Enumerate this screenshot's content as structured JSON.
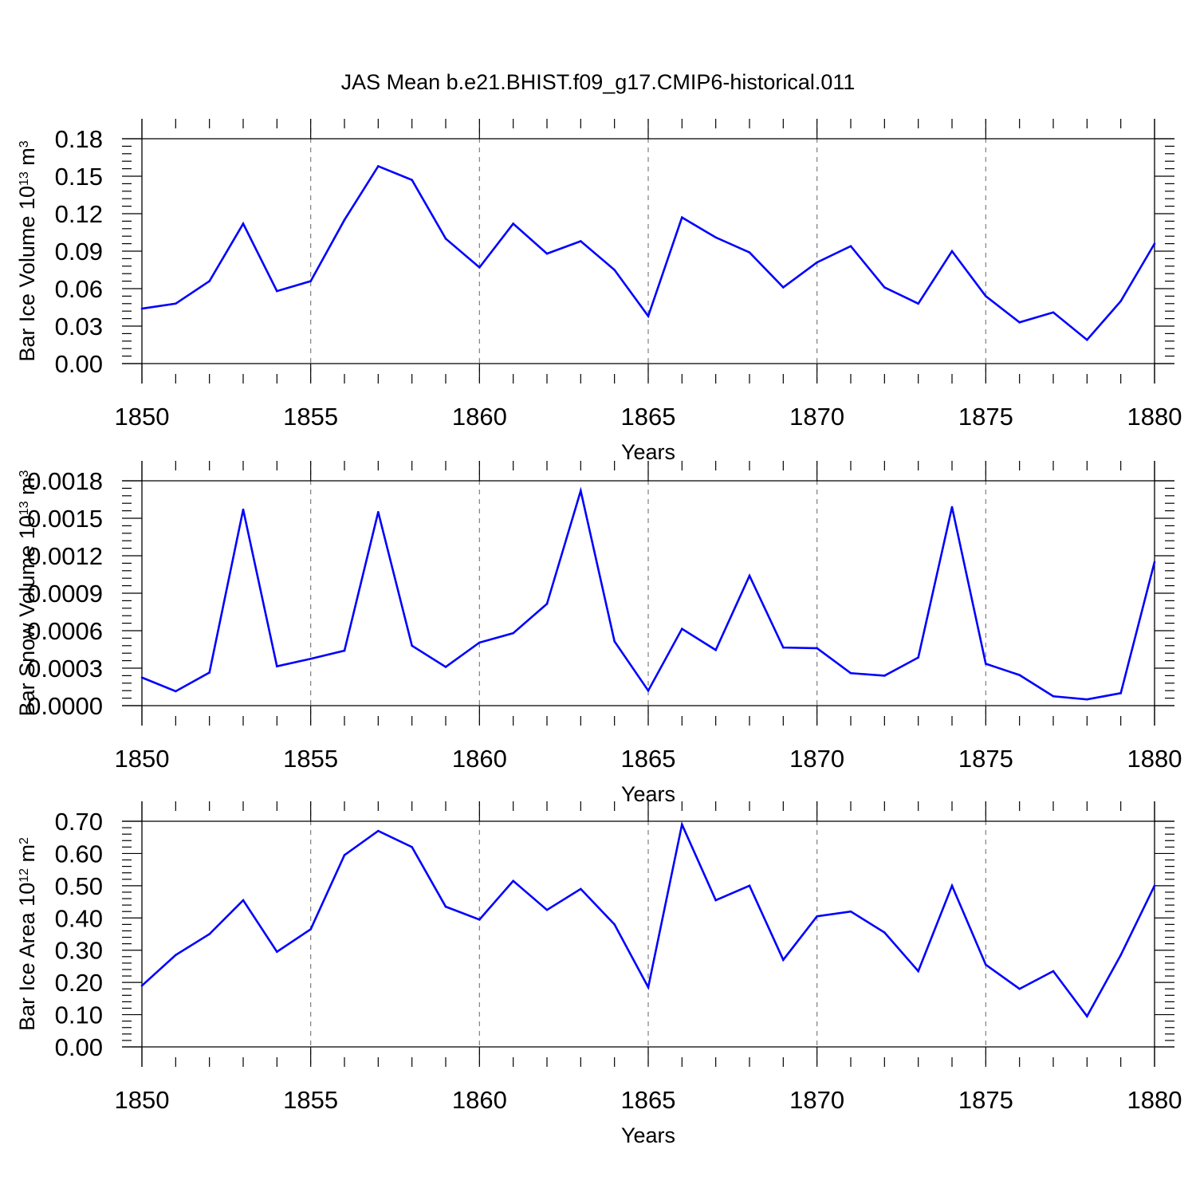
{
  "title": "JAS Mean b.e21.BHIST.f09_g17.CMIP6-historical.011",
  "colors": {
    "line": "#0000ff",
    "axis": "#000000",
    "grid": "#7f7f7f"
  },
  "chart_data": [
    {
      "type": "line",
      "title": "JAS Mean b.e21.BHIST.f09_g17.CMIP6-historical.011",
      "xlabel": "Years",
      "ylabel": {
        "text": "Bar Ice Volume 10",
        "exp": "13",
        "unit": " m",
        "unit_exp": "3"
      },
      "xlim": [
        1850,
        1880
      ],
      "ylim": [
        0,
        0.18
      ],
      "yticks": [
        0.0,
        0.03,
        0.06,
        0.09,
        0.12,
        0.15,
        0.18
      ],
      "ytick_labels": [
        "0.00",
        "0.03",
        "0.06",
        "0.09",
        "0.12",
        "0.15",
        "0.18"
      ],
      "xticks": [
        1850,
        1855,
        1860,
        1865,
        1870,
        1875,
        1880
      ],
      "xtick_labels": [
        "1850",
        "1855",
        "1860",
        "1865",
        "1870",
        "1875",
        "1880"
      ],
      "grid": "vertical dashed at major x ticks",
      "x": [
        1850,
        1851,
        1852,
        1853,
        1854,
        1855,
        1856,
        1857,
        1858,
        1859,
        1860,
        1861,
        1862,
        1863,
        1864,
        1865,
        1866,
        1867,
        1868,
        1869,
        1870,
        1871,
        1872,
        1873,
        1874,
        1875,
        1876,
        1877,
        1878,
        1879,
        1880
      ],
      "series": [
        {
          "name": "Bar Ice Volume",
          "values": [
            0.044,
            0.048,
            0.066,
            0.112,
            0.058,
            0.066,
            0.115,
            0.158,
            0.147,
            0.1,
            0.077,
            0.112,
            0.088,
            0.098,
            0.075,
            0.038,
            0.117,
            0.101,
            0.089,
            0.061,
            0.081,
            0.094,
            0.061,
            0.048,
            0.09,
            0.054,
            0.033,
            0.041,
            0.019,
            0.05,
            0.096
          ]
        }
      ]
    },
    {
      "type": "line",
      "title": "",
      "xlabel": "Years",
      "ylabel": {
        "text": "Bar Snow Volume 10",
        "exp": "13",
        "unit": " m",
        "unit_exp": "3"
      },
      "xlim": [
        1850,
        1880
      ],
      "ylim": [
        0,
        0.0018
      ],
      "yticks": [
        0.0,
        0.0003,
        0.0006,
        0.0009,
        0.0012,
        0.0015,
        0.0018
      ],
      "ytick_labels": [
        "0.0000",
        "0.0003",
        "0.0006",
        "0.0009",
        "0.0012",
        "0.0015",
        "0.0018"
      ],
      "xticks": [
        1850,
        1855,
        1860,
        1865,
        1870,
        1875,
        1880
      ],
      "xtick_labels": [
        "1850",
        "1855",
        "1860",
        "1865",
        "1870",
        "1875",
        "1880"
      ],
      "grid": "vertical dashed at major x ticks",
      "x": [
        1850,
        1851,
        1852,
        1853,
        1854,
        1855,
        1856,
        1857,
        1858,
        1859,
        1860,
        1861,
        1862,
        1863,
        1864,
        1865,
        1866,
        1867,
        1868,
        1869,
        1870,
        1871,
        1872,
        1873,
        1874,
        1875,
        1876,
        1877,
        1878,
        1879,
        1880
      ],
      "series": [
        {
          "name": "Bar Snow Volume",
          "values": [
            0.000225,
            0.000115,
            0.000265,
            0.00157,
            0.000315,
            0.000375,
            0.00044,
            0.00155,
            0.00048,
            0.00031,
            0.000505,
            0.00058,
            0.000815,
            0.00172,
            0.000515,
            0.00012,
            0.000615,
            0.000445,
            0.00104,
            0.000465,
            0.00046,
            0.00026,
            0.00024,
            0.000385,
            0.00159,
            0.000335,
            0.000245,
            7.5e-05,
            5e-05,
            0.0001,
            0.00115
          ]
        }
      ]
    },
    {
      "type": "line",
      "title": "",
      "xlabel": "Years",
      "ylabel": {
        "text": "Bar Ice Area 10",
        "exp": "12",
        "unit": " m",
        "unit_exp": "2"
      },
      "xlim": [
        1850,
        1880
      ],
      "ylim": [
        0,
        0.7
      ],
      "yticks": [
        0.0,
        0.1,
        0.2,
        0.3,
        0.4,
        0.5,
        0.6,
        0.7
      ],
      "ytick_labels": [
        "0.00",
        "0.10",
        "0.20",
        "0.30",
        "0.40",
        "0.50",
        "0.60",
        "0.70"
      ],
      "xticks": [
        1850,
        1855,
        1860,
        1865,
        1870,
        1875,
        1880
      ],
      "xtick_labels": [
        "1850",
        "1855",
        "1860",
        "1865",
        "1870",
        "1875",
        "1880"
      ],
      "grid": "vertical dashed at major x ticks",
      "x": [
        1850,
        1851,
        1852,
        1853,
        1854,
        1855,
        1856,
        1857,
        1858,
        1859,
        1860,
        1861,
        1862,
        1863,
        1864,
        1865,
        1866,
        1867,
        1868,
        1869,
        1870,
        1871,
        1872,
        1873,
        1874,
        1875,
        1876,
        1877,
        1878,
        1879,
        1880
      ],
      "series": [
        {
          "name": "Bar Ice Area",
          "values": [
            0.19,
            0.285,
            0.35,
            0.455,
            0.295,
            0.365,
            0.595,
            0.67,
            0.62,
            0.435,
            0.395,
            0.515,
            0.425,
            0.49,
            0.38,
            0.185,
            0.69,
            0.455,
            0.5,
            0.27,
            0.405,
            0.42,
            0.355,
            0.235,
            0.5,
            0.255,
            0.18,
            0.235,
            0.095,
            0.285,
            0.5
          ]
        }
      ]
    }
  ]
}
